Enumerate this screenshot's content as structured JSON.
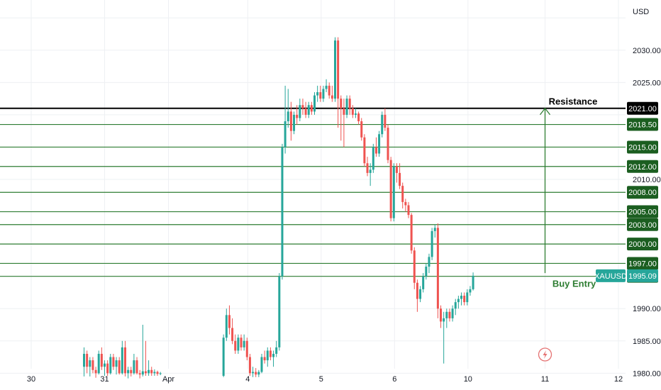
{
  "chart_data": {
    "type": "candlestick",
    "currency": "USD",
    "symbol": "XAUUSD",
    "last_price": "1995.09",
    "ylim": [
      1978.5,
      2037
    ],
    "y_ticks": [
      "1980.00",
      "1985.00",
      "1990.00",
      "2010.00",
      "2025.00",
      "2030.00"
    ],
    "x_ticks": [
      {
        "label": "30",
        "x": 0
      },
      {
        "label": "31",
        "x": 1
      },
      {
        "label": "Apr",
        "x": 1.87
      },
      {
        "label": "4",
        "x": 2.95
      },
      {
        "label": "5",
        "x": 3.95
      },
      {
        "label": "6",
        "x": 4.95
      },
      {
        "label": "10",
        "x": 5.95
      },
      {
        "label": "11",
        "x": 7.0
      },
      {
        "label": "12",
        "x": 8.0
      }
    ],
    "levels": [
      {
        "value": 2021.0,
        "label": "2021.00",
        "type": "resistance"
      },
      {
        "value": 2018.5,
        "label": "2018.50",
        "type": "level"
      },
      {
        "value": 2015.0,
        "label": "2015.00",
        "type": "level"
      },
      {
        "value": 2012.0,
        "label": "2012.00",
        "type": "level"
      },
      {
        "value": 2008.0,
        "label": "2008.00",
        "type": "level"
      },
      {
        "value": 2005.0,
        "label": "2005.00",
        "type": "level"
      },
      {
        "value": 2003.0,
        "label": "2003.00",
        "type": "level"
      },
      {
        "value": 2000.0,
        "label": "2000.00",
        "type": "level"
      },
      {
        "value": 1997.0,
        "label": "1997.00",
        "type": "level"
      },
      {
        "value": 1995.0,
        "label": "1995.00",
        "type": "level"
      }
    ],
    "annotations": [
      {
        "text": "Resistance",
        "x": 7.05,
        "y": 2022.0
      },
      {
        "text": "Buy Entry",
        "x": 7.1,
        "y": 1993.8
      }
    ],
    "arrow": {
      "x": 7.0,
      "from": 1995.5,
      "to": 2021.0
    },
    "candles": [
      [
        0.72,
        1981,
        1984,
        1979.5,
        1983
      ],
      [
        0.76,
        1983,
        1983.5,
        1980,
        1981
      ],
      [
        0.8,
        1981,
        1982.5,
        1979.5,
        1982
      ],
      [
        0.84,
        1982,
        1982.5,
        1980,
        1980.5
      ],
      [
        0.88,
        1980.5,
        1981,
        1979.3,
        1980
      ],
      [
        0.92,
        1980,
        1983.5,
        1979.8,
        1983
      ],
      [
        0.96,
        1983,
        1984,
        1980.5,
        1981
      ],
      [
        1.0,
        1981,
        1982,
        1979.6,
        1981.5
      ],
      [
        1.04,
        1981.5,
        1982,
        1979.6,
        1980
      ],
      [
        1.08,
        1980,
        1983,
        1979.8,
        1982.5
      ],
      [
        1.12,
        1982.5,
        1983,
        1980.5,
        1981
      ],
      [
        1.16,
        1981,
        1982.5,
        1979.8,
        1982
      ],
      [
        1.2,
        1982,
        1982.5,
        1979.8,
        1980
      ],
      [
        1.24,
        1980,
        1985,
        1979.8,
        1984
      ],
      [
        1.28,
        1984,
        1985,
        1979.5,
        1980
      ],
      [
        1.32,
        1980,
        1981,
        1979.2,
        1980.5
      ],
      [
        1.36,
        1980.5,
        1981,
        1979.5,
        1980
      ],
      [
        1.4,
        1980,
        1983,
        1979.8,
        1982
      ],
      [
        1.44,
        1982,
        1982.5,
        1979.8,
        1980
      ],
      [
        1.48,
        1980,
        1980.5,
        1979.2,
        1979.8
      ],
      [
        1.52,
        1979.8,
        1987.5,
        1979.5,
        1980.3
      ],
      [
        1.56,
        1980.3,
        1985,
        1979.6,
        1980
      ],
      [
        1.6,
        1980,
        1982,
        1979.6,
        1980.5
      ],
      [
        1.64,
        1980.5,
        1981,
        1979.6,
        1980
      ],
      [
        1.68,
        1980,
        1980.6,
        1979.6,
        1980.2
      ],
      [
        1.72,
        1980.2,
        1980.4,
        1979.6,
        1979.9
      ],
      [
        1.76,
        1979.9,
        1980.2,
        1979.7,
        1980
      ],
      [
        2.62,
        1979.6,
        1986,
        1979.4,
        1985.5
      ],
      [
        2.66,
        1985.5,
        1990,
        1985,
        1989
      ],
      [
        2.7,
        1989,
        1990.5,
        1986,
        1987
      ],
      [
        2.74,
        1987,
        1988.5,
        1984.5,
        1985
      ],
      [
        2.78,
        1985,
        1986,
        1983,
        1983.5
      ],
      [
        2.82,
        1983.5,
        1986,
        1983,
        1985.5
      ],
      [
        2.86,
        1985.5,
        1986,
        1983.5,
        1984
      ],
      [
        2.9,
        1984,
        1986,
        1983.5,
        1985
      ],
      [
        2.94,
        1985,
        1985.5,
        1982,
        1982.5
      ],
      [
        2.98,
        1982.5,
        1983,
        1979.6,
        1980
      ],
      [
        3.02,
        1980,
        1981,
        1979.4,
        1980.2
      ],
      [
        3.06,
        1980.2,
        1980.8,
        1979.4,
        1979.8
      ],
      [
        3.1,
        1979.8,
        1980.5,
        1979.4,
        1980.2
      ],
      [
        3.14,
        1980.2,
        1983,
        1980,
        1982.5
      ],
      [
        3.18,
        1982.5,
        1983.5,
        1981.5,
        1982
      ],
      [
        3.22,
        1982,
        1984,
        1981,
        1983.5
      ],
      [
        3.26,
        1983.5,
        1984,
        1982,
        1982.5
      ],
      [
        3.3,
        1982.5,
        1983.5,
        1981,
        1983
      ],
      [
        3.34,
        1983,
        1985,
        1982.5,
        1984
      ],
      [
        3.38,
        1984,
        1995.5,
        1983.5,
        1995
      ],
      [
        3.42,
        1995,
        2015.5,
        1994.5,
        2015
      ],
      [
        3.46,
        2015,
        2024.5,
        2014,
        2019
      ],
      [
        3.5,
        2019,
        2024,
        2018,
        2020.5
      ],
      [
        3.54,
        2020.5,
        2022,
        2016,
        2017.5
      ],
      [
        3.58,
        2017.5,
        2020.5,
        2017,
        2020
      ],
      [
        3.62,
        2020,
        2021.5,
        2018.5,
        2019.5
      ],
      [
        3.66,
        2019.5,
        2022.5,
        2019,
        2021.5
      ],
      [
        3.7,
        2021.5,
        2022.5,
        2020,
        2021
      ],
      [
        3.74,
        2021,
        2022,
        2019.5,
        2020
      ],
      [
        3.78,
        2020,
        2022,
        2019.5,
        2021.5
      ],
      [
        3.82,
        2021.5,
        2022,
        2020,
        2020.5
      ],
      [
        3.86,
        2020.5,
        2023.5,
        2020,
        2023
      ],
      [
        3.9,
        2023,
        2024.5,
        2022,
        2023.5
      ],
      [
        3.94,
        2023.5,
        2024.5,
        2022,
        2022.5
      ],
      [
        3.98,
        2022.5,
        2024.5,
        2022,
        2024
      ],
      [
        4.02,
        2024,
        2025.5,
        2023.5,
        2024.5
      ],
      [
        4.06,
        2024.5,
        2025,
        2022.5,
        2023
      ],
      [
        4.1,
        2023,
        2024.5,
        2022,
        2022.5
      ],
      [
        4.14,
        2022.5,
        2032,
        2022,
        2031.5
      ],
      [
        4.18,
        2031.5,
        2032,
        2018,
        2022.5
      ],
      [
        4.22,
        2022.5,
        2023,
        2016,
        2021
      ],
      [
        4.26,
        2021,
        2022.5,
        2015,
        2020
      ],
      [
        4.3,
        2020,
        2023,
        2019.5,
        2022.5
      ],
      [
        4.34,
        2022.5,
        2023,
        2020,
        2021
      ],
      [
        4.38,
        2021,
        2021.5,
        2019.5,
        2020
      ],
      [
        4.42,
        2020,
        2021,
        2019.5,
        2020.2
      ],
      [
        4.46,
        2020.2,
        2020.5,
        2018.5,
        2019
      ],
      [
        4.5,
        2019,
        2019.5,
        2016,
        2016.5
      ],
      [
        4.54,
        2016.5,
        2017,
        2012,
        2012.5
      ],
      [
        4.58,
        2012.5,
        2013.5,
        2010.5,
        2011
      ],
      [
        4.62,
        2011,
        2012.5,
        2009,
        2011.5
      ],
      [
        4.66,
        2011.5,
        2015.5,
        2011,
        2015
      ],
      [
        4.7,
        2015,
        2016.5,
        2013.5,
        2014
      ],
      [
        4.74,
        2014,
        2017.5,
        2013.5,
        2017
      ],
      [
        4.78,
        2017,
        2020.5,
        2016.5,
        2020
      ],
      [
        4.82,
        2020,
        2021,
        2017.5,
        2018
      ],
      [
        4.86,
        2018,
        2018.5,
        2012.5,
        2013
      ],
      [
        4.9,
        2013,
        2013.5,
        2003.5,
        2004
      ],
      [
        4.94,
        2004,
        2012.5,
        2003.5,
        2012
      ],
      [
        4.98,
        2012,
        2012.5,
        2009.5,
        2011
      ],
      [
        5.02,
        2011,
        2012.5,
        2008.5,
        2009
      ],
      [
        5.06,
        2009,
        2009.5,
        2005.5,
        2006.5
      ],
      [
        5.1,
        2006.5,
        2007,
        2005,
        2006
      ],
      [
        5.14,
        2006,
        2006.5,
        2004,
        2004.5
      ],
      [
        5.18,
        2004.5,
        2004.8,
        1998.5,
        1999
      ],
      [
        5.22,
        1999,
        1999.5,
        1993,
        1994
      ],
      [
        5.26,
        1994,
        1994.5,
        1989.5,
        1991.5
      ],
      [
        5.3,
        1991.5,
        1993.5,
        1991,
        1993
      ],
      [
        5.34,
        1993,
        1995.5,
        1992.5,
        1995
      ],
      [
        5.38,
        1995,
        1997,
        1994.5,
        1996.5
      ],
      [
        5.42,
        1996.5,
        1998.5,
        1995.5,
        1998
      ],
      [
        5.46,
        1998,
        2002.5,
        1997.5,
        2002
      ],
      [
        5.5,
        2002,
        2003,
        2001,
        2002.5
      ],
      [
        5.54,
        2002.5,
        2003.2,
        1988.5,
        1990
      ],
      [
        5.58,
        1990,
        1990.5,
        1987,
        1988
      ],
      [
        5.62,
        1988,
        1989.5,
        1981.5,
        1988.5
      ],
      [
        5.66,
        1988.5,
        1990,
        1987,
        1989.5
      ],
      [
        5.7,
        1989.5,
        1990,
        1988,
        1988.5
      ],
      [
        5.74,
        1988.5,
        1990.5,
        1988,
        1990
      ],
      [
        5.78,
        1990,
        1991.5,
        1989,
        1991
      ],
      [
        5.82,
        1991,
        1992,
        1990,
        1991.5
      ],
      [
        5.86,
        1991.5,
        1992.5,
        1990.5,
        1992
      ],
      [
        5.9,
        1992,
        1992.5,
        1990.5,
        1991
      ],
      [
        5.94,
        1991,
        1993,
        1990.5,
        1992.5
      ],
      [
        5.98,
        1992.5,
        1993.5,
        1992,
        1993
      ],
      [
        6.02,
        1993,
        1995.6,
        1992.8,
        1995.09
      ]
    ]
  }
}
